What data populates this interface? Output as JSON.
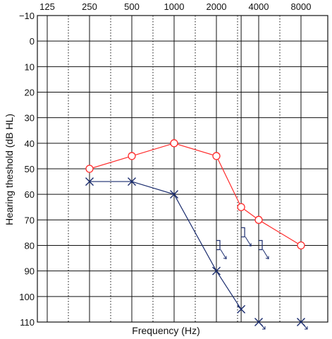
{
  "chart_data": {
    "type": "line",
    "xlabel": "Frequency (Hz)",
    "ylabel": "Hearing theshold (dB HL)",
    "x_ticks": [
      "125",
      "250",
      "500",
      "1000",
      "2000",
      "4000",
      "8000"
    ],
    "x_tick_values": [
      125,
      250,
      500,
      1000,
      2000,
      4000,
      8000
    ],
    "y_ticks": [
      "−10",
      "0",
      "10",
      "20",
      "30",
      "40",
      "50",
      "60",
      "70",
      "80",
      "90",
      "100",
      "110"
    ],
    "y_tick_values": [
      -10,
      0,
      10,
      20,
      30,
      40,
      50,
      60,
      70,
      80,
      90,
      100,
      110
    ],
    "ylim": [
      -10,
      110
    ],
    "y_inverted": true,
    "x_scale": "log",
    "grid": true,
    "series": [
      {
        "marker": "circle",
        "color": "#ff2b2b",
        "x": [
          250,
          500,
          1000,
          2000,
          3000,
          4000,
          8000
        ],
        "y": [
          50,
          45,
          40,
          45,
          65,
          70,
          80
        ]
      },
      {
        "marker": "cross",
        "color": "#1a2c6e",
        "x": [
          250,
          500,
          1000,
          2000,
          3000,
          4000,
          8000
        ],
        "y": [
          55,
          55,
          60,
          90,
          105,
          110,
          110
        ],
        "no_response": [
          false,
          false,
          false,
          false,
          false,
          true,
          true
        ],
        "line_points": 5
      },
      {
        "marker": "bone-bracket-no-response",
        "color": "#1a2c6e",
        "x": [
          2000,
          3000,
          4000
        ],
        "y": [
          80,
          75,
          80
        ]
      }
    ]
  }
}
